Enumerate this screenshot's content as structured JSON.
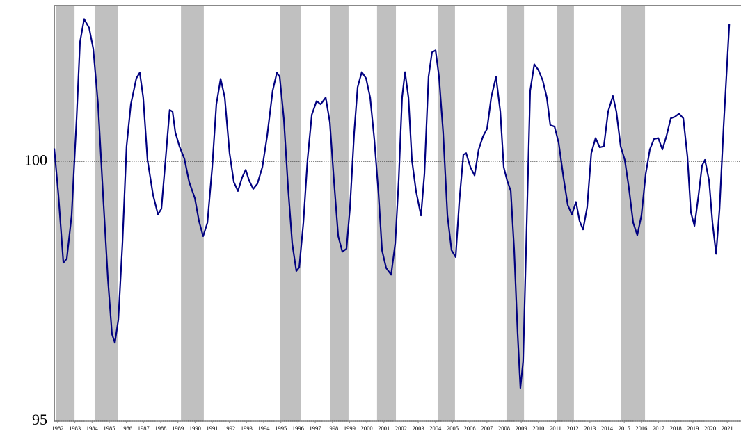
{
  "chart_data": {
    "type": "line",
    "x": [
      1981.8,
      1982.04,
      1982.33,
      1982.53,
      1982.81,
      1983.1,
      1983.3,
      1983.54,
      1983.83,
      1984.07,
      1984.35,
      1984.64,
      1984.92,
      1985.16,
      1985.33,
      1985.53,
      1985.77,
      1986.01,
      1986.26,
      1986.58,
      1986.78,
      1986.98,
      1987.23,
      1987.55,
      1987.84,
      1988.04,
      1988.28,
      1988.52,
      1988.69,
      1988.85,
      1989.09,
      1989.38,
      1989.66,
      1989.99,
      1990.23,
      1990.47,
      1990.72,
      1991.0,
      1991.24,
      1991.49,
      1991.73,
      1992.01,
      1992.26,
      1992.5,
      1992.74,
      1992.95,
      1993.15,
      1993.39,
      1993.63,
      1993.92,
      1994.2,
      1994.52,
      1994.77,
      1994.93,
      1995.17,
      1995.42,
      1995.66,
      1995.9,
      1996.07,
      1996.31,
      1996.55,
      1996.8,
      1997.08,
      1997.32,
      1997.61,
      1997.85,
      1998.09,
      1998.34,
      1998.58,
      1998.82,
      1999.02,
      1999.27,
      1999.47,
      1999.71,
      1999.96,
      2000.2,
      2000.44,
      2000.69,
      2000.89,
      2001.13,
      2001.42,
      2001.66,
      2001.86,
      2002.06,
      2002.23,
      2002.43,
      2002.63,
      2002.87,
      2003.16,
      2003.36,
      2003.6,
      2003.8,
      2004.01,
      2004.21,
      2004.45,
      2004.7,
      2004.94,
      2005.18,
      2005.39,
      2005.63,
      2005.79,
      2006.04,
      2006.28,
      2006.52,
      2006.77,
      2007.01,
      2007.25,
      2007.53,
      2007.78,
      2007.98,
      2008.18,
      2008.39,
      2008.59,
      2008.79,
      2008.95,
      2009.11,
      2009.32,
      2009.52,
      2009.76,
      2010.0,
      2010.25,
      2010.49,
      2010.69,
      2010.94,
      2011.18,
      2011.46,
      2011.71,
      2011.95,
      2012.19,
      2012.4,
      2012.6,
      2012.84,
      2013.08,
      2013.33,
      2013.57,
      2013.81,
      2014.06,
      2014.34,
      2014.54,
      2014.79,
      2015.03,
      2015.27,
      2015.52,
      2015.76,
      2016.0,
      2016.25,
      2016.49,
      2016.73,
      2016.98,
      2017.22,
      2017.46,
      2017.71,
      2017.95,
      2018.19,
      2018.44,
      2018.68,
      2018.88,
      2019.09,
      2019.33,
      2019.53,
      2019.7,
      2019.94,
      2020.14,
      2020.35,
      2020.55,
      2020.79,
      2021.12
    ],
    "values": [
      100.25,
      99.36,
      98.05,
      98.13,
      98.96,
      100.83,
      102.3,
      102.74,
      102.57,
      102.17,
      101.1,
      99.36,
      97.75,
      96.68,
      96.51,
      96.95,
      98.42,
      100.29,
      101.1,
      101.6,
      101.71,
      101.23,
      100.03,
      99.36,
      98.98,
      99.09,
      100.03,
      100.99,
      100.96,
      100.56,
      100.29,
      100.05,
      99.6,
      99.29,
      98.85,
      98.56,
      98.82,
      99.89,
      101.1,
      101.59,
      101.23,
      100.16,
      99.6,
      99.43,
      99.69,
      99.84,
      99.63,
      99.47,
      99.57,
      99.89,
      100.49,
      101.36,
      101.71,
      101.63,
      100.83,
      99.49,
      98.42,
      97.89,
      97.96,
      98.82,
      100.03,
      100.9,
      101.16,
      101.1,
      101.23,
      100.76,
      99.63,
      98.56,
      98.26,
      98.32,
      99.09,
      100.56,
      101.43,
      101.72,
      101.6,
      101.23,
      100.43,
      99.36,
      98.29,
      97.95,
      97.82,
      98.42,
      99.63,
      101.23,
      101.72,
      101.23,
      100.03,
      99.43,
      98.96,
      99.76,
      101.63,
      102.1,
      102.14,
      101.63,
      100.56,
      98.96,
      98.29,
      98.16,
      99.22,
      100.13,
      100.16,
      99.89,
      99.73,
      100.23,
      100.48,
      100.63,
      101.23,
      101.63,
      100.96,
      99.89,
      99.63,
      99.43,
      98.29,
      96.68,
      95.64,
      96.15,
      98.82,
      101.36,
      101.87,
      101.76,
      101.56,
      101.23,
      100.7,
      100.67,
      100.36,
      99.69,
      99.16,
      98.98,
      99.22,
      98.85,
      98.69,
      99.12,
      100.16,
      100.45,
      100.27,
      100.29,
      100.96,
      101.26,
      100.96,
      100.29,
      100.03,
      99.49,
      98.82,
      98.58,
      98.96,
      99.76,
      100.23,
      100.43,
      100.45,
      100.23,
      100.49,
      100.83,
      100.86,
      100.92,
      100.83,
      100.09,
      99.02,
      98.76,
      99.36,
      99.92,
      100.03,
      99.63,
      98.82,
      98.22,
      99.09,
      100.7,
      102.65
    ],
    "color": "#000080",
    "shaded_periods": [
      [
        1981.88,
        1982.98
      ],
      [
        1984.15,
        1985.49
      ],
      [
        1989.18,
        1990.51
      ],
      [
        1994.97,
        1996.15
      ],
      [
        1997.85,
        1998.94
      ],
      [
        2000.6,
        2001.7
      ],
      [
        2004.13,
        2005.14
      ],
      [
        2008.14,
        2009.16
      ],
      [
        2011.1,
        2012.07
      ],
      [
        2014.79,
        2016.21
      ]
    ],
    "shade_color": "#c0c0c0",
    "xlim": [
      1981.8,
      2021.8
    ],
    "xticks": [
      1982,
      1983,
      1984,
      1985,
      1986,
      1987,
      1988,
      1989,
      1990,
      1991,
      1992,
      1993,
      1994,
      1995,
      1996,
      1997,
      1998,
      1999,
      2000,
      2001,
      2002,
      2003,
      2004,
      2005,
      2006,
      2007,
      2008,
      2009,
      2010,
      2011,
      2012,
      2013,
      2014,
      2015,
      2016,
      2017,
      2018,
      2019,
      2020,
      2021
    ],
    "ylim": [
      95,
      103
    ],
    "yticks": [
      95,
      100
    ],
    "grid": true
  }
}
